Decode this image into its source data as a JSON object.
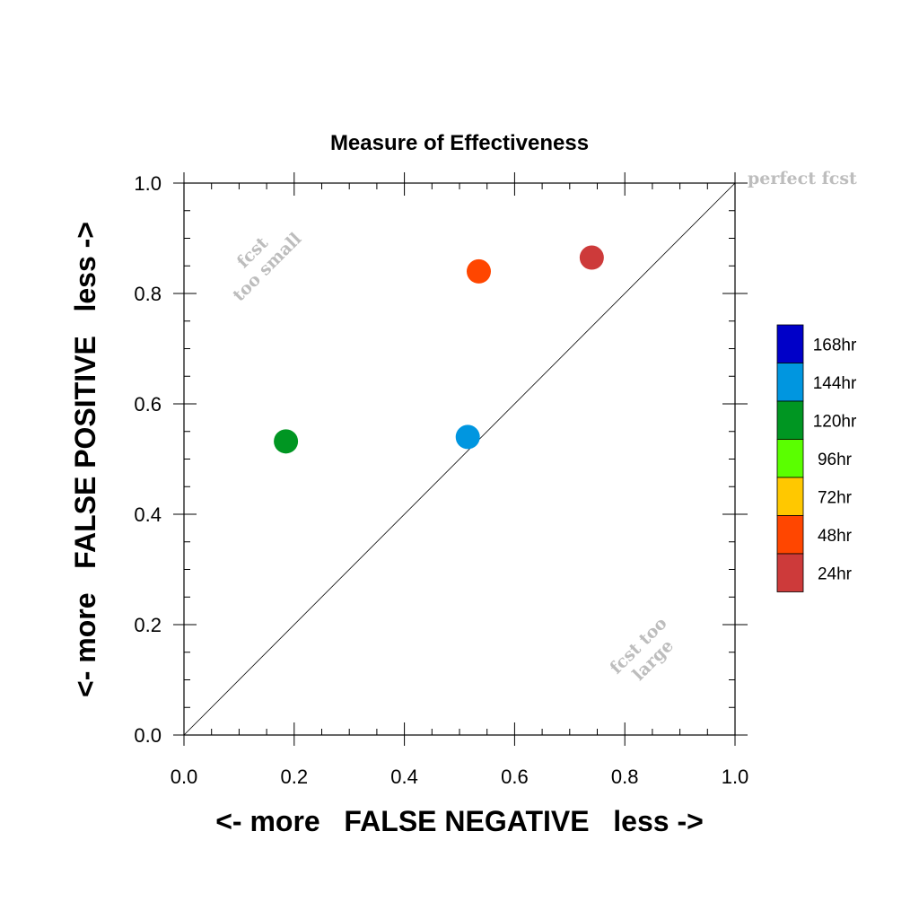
{
  "chart_data": {
    "type": "scatter",
    "title": "Measure of Effectiveness",
    "xlabel": "<- more   FALSE NEGATIVE   less ->",
    "ylabel": "<- more   FALSE POSITIVE   less ->",
    "xlim": [
      0.0,
      1.0
    ],
    "ylim": [
      0.0,
      1.0
    ],
    "xticks": [
      "0.0",
      "0.2",
      "0.4",
      "0.6",
      "0.8",
      "1.0"
    ],
    "yticks": [
      "0.0",
      "0.2",
      "0.4",
      "0.6",
      "0.8",
      "1.0"
    ],
    "grid": false,
    "reference_line": "diagonal y = x",
    "annotations": {
      "perfect": "perfect fcst",
      "small_line1": "fcst",
      "small_line2": "too small",
      "large_line1": "fcst too",
      "large_line2": "large"
    },
    "legend": {
      "placement": "right",
      "entries": [
        {
          "label": "168hr",
          "color": "#0000c8"
        },
        {
          "label": "144hr",
          "color": "#0096e0"
        },
        {
          "label": "120hr",
          "color": "#009622"
        },
        {
          "label": "96hr",
          "color": "#5aff00"
        },
        {
          "label": "72hr",
          "color": "#ffc800"
        },
        {
          "label": "48hr",
          "color": "#ff4600"
        },
        {
          "label": "24hr",
          "color": "#cd3a3a"
        }
      ]
    },
    "points": [
      {
        "series": "24hr",
        "x": 0.74,
        "y": 0.865,
        "color": "#cd3a3a"
      },
      {
        "series": "48hr",
        "x": 0.535,
        "y": 0.84,
        "color": "#ff4600"
      },
      {
        "series": "120hr",
        "x": 0.185,
        "y": 0.532,
        "color": "#009622"
      },
      {
        "series": "144hr",
        "x": 0.515,
        "y": 0.54,
        "color": "#0096e0"
      }
    ]
  }
}
